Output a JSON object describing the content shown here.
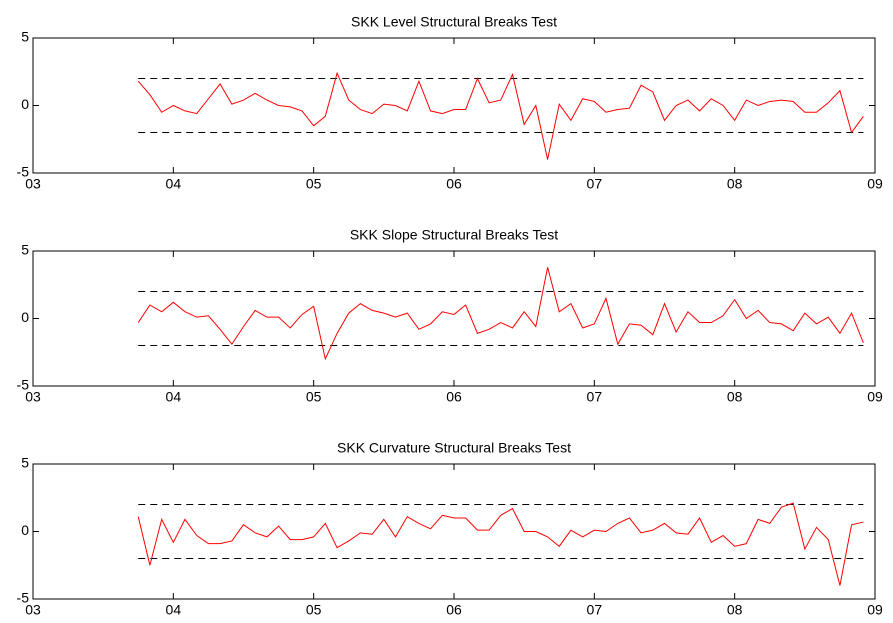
{
  "chart_data": [
    {
      "type": "line",
      "title": "SKK Level Structural Breaks Test",
      "x": [
        3.75,
        3.833,
        3.917,
        4,
        4.083,
        4.167,
        4.25,
        4.333,
        4.417,
        4.5,
        4.583,
        4.667,
        4.75,
        4.833,
        4.917,
        5,
        5.083,
        5.167,
        5.25,
        5.333,
        5.417,
        5.5,
        5.583,
        5.667,
        5.75,
        5.833,
        5.917,
        6,
        6.083,
        6.167,
        6.25,
        6.333,
        6.417,
        6.5,
        6.583,
        6.667,
        6.75,
        6.833,
        6.917,
        7,
        7.083,
        7.167,
        7.25,
        7.333,
        7.417,
        7.5,
        7.583,
        7.667,
        7.75,
        7.833,
        7.917,
        8,
        8.083,
        8.167,
        8.25,
        8.333,
        8.417,
        8.5,
        8.583,
        8.667,
        8.75,
        8.833,
        8.917
      ],
      "values": [
        1.8,
        0.8,
        -0.5,
        0,
        -0.4,
        -0.6,
        0.5,
        1.6,
        0.1,
        0.4,
        0.9,
        0.4,
        0,
        -0.1,
        -0.4,
        -1.5,
        -0.8,
        2.4,
        0.4,
        -0.3,
        -0.6,
        0.1,
        0,
        -0.4,
        1.8,
        -0.4,
        -0.6,
        -0.3,
        -0.3,
        2.0,
        0.2,
        0.4,
        2.3,
        -1.4,
        0,
        -4.0,
        0.1,
        -1.1,
        0.5,
        0.3,
        -0.5,
        -0.3,
        -0.2,
        1.5,
        1.0,
        -1.1,
        0,
        0.4,
        -0.4,
        0.5,
        0,
        -1.1,
        0.4,
        0,
        0.3,
        0.4,
        0.3,
        -0.5,
        -0.5,
        0.2,
        1.1,
        -2.0,
        -0.8
      ],
      "color": "#ff0000",
      "reference_lines": [
        2,
        -2
      ],
      "xlim": [
        3,
        9
      ],
      "xticks": [
        {
          "value": 3,
          "label": "03"
        },
        {
          "value": 4,
          "label": "04"
        },
        {
          "value": 5,
          "label": "05"
        },
        {
          "value": 6,
          "label": "06"
        },
        {
          "value": 7,
          "label": "07"
        },
        {
          "value": 8,
          "label": "08"
        },
        {
          "value": 9,
          "label": "09"
        }
      ],
      "ylim": [
        -5,
        5
      ],
      "yticks": [
        -5,
        0,
        5
      ]
    },
    {
      "type": "line",
      "title": "SKK Slope Structural Breaks Test",
      "x": [
        3.75,
        3.833,
        3.917,
        4,
        4.083,
        4.167,
        4.25,
        4.333,
        4.417,
        4.5,
        4.583,
        4.667,
        4.75,
        4.833,
        4.917,
        5,
        5.083,
        5.167,
        5.25,
        5.333,
        5.417,
        5.5,
        5.583,
        5.667,
        5.75,
        5.833,
        5.917,
        6,
        6.083,
        6.167,
        6.25,
        6.333,
        6.417,
        6.5,
        6.583,
        6.667,
        6.75,
        6.833,
        6.917,
        7,
        7.083,
        7.167,
        7.25,
        7.333,
        7.417,
        7.5,
        7.583,
        7.667,
        7.75,
        7.833,
        7.917,
        8,
        8.083,
        8.167,
        8.25,
        8.333,
        8.417,
        8.5,
        8.583,
        8.667,
        8.75,
        8.833,
        8.917
      ],
      "values": [
        -0.3,
        1.0,
        0.5,
        1.2,
        0.5,
        0.1,
        0.2,
        -0.8,
        -1.9,
        -0.6,
        0.6,
        0.1,
        0.1,
        -0.7,
        0.3,
        0.9,
        -3.0,
        -1.1,
        0.4,
        1.1,
        0.6,
        0.4,
        0.1,
        0.4,
        -0.8,
        -0.4,
        0.5,
        0.3,
        1.0,
        -1.1,
        -0.8,
        -0.3,
        -0.7,
        0.5,
        -0.6,
        3.8,
        0.5,
        1.1,
        -0.7,
        -0.4,
        1.5,
        -1.9,
        -0.4,
        -0.5,
        -1.2,
        1.1,
        -1.0,
        0.5,
        -0.3,
        -0.3,
        0.2,
        1.4,
        0,
        0.6,
        -0.3,
        -0.4,
        -0.9,
        0.4,
        -0.4,
        0.1,
        -1.1,
        0.4,
        -1.8
      ],
      "color": "#ff0000",
      "reference_lines": [
        2,
        -2
      ],
      "xlim": [
        3,
        9
      ],
      "xticks": [
        {
          "value": 3,
          "label": "03"
        },
        {
          "value": 4,
          "label": "04"
        },
        {
          "value": 5,
          "label": "05"
        },
        {
          "value": 6,
          "label": "06"
        },
        {
          "value": 7,
          "label": "07"
        },
        {
          "value": 8,
          "label": "08"
        },
        {
          "value": 9,
          "label": "09"
        }
      ],
      "ylim": [
        -5,
        5
      ],
      "yticks": [
        -5,
        0,
        5
      ]
    },
    {
      "type": "line",
      "title": "SKK Curvature Structural Breaks Test",
      "x": [
        3.75,
        3.833,
        3.917,
        4,
        4.083,
        4.167,
        4.25,
        4.333,
        4.417,
        4.5,
        4.583,
        4.667,
        4.75,
        4.833,
        4.917,
        5,
        5.083,
        5.167,
        5.25,
        5.333,
        5.417,
        5.5,
        5.583,
        5.667,
        5.75,
        5.833,
        5.917,
        6,
        6.083,
        6.167,
        6.25,
        6.333,
        6.417,
        6.5,
        6.583,
        6.667,
        6.75,
        6.833,
        6.917,
        7,
        7.083,
        7.167,
        7.25,
        7.333,
        7.417,
        7.5,
        7.583,
        7.667,
        7.75,
        7.833,
        7.917,
        8,
        8.083,
        8.167,
        8.25,
        8.333,
        8.417,
        8.5,
        8.583,
        8.667,
        8.75,
        8.833,
        8.917
      ],
      "values": [
        1.1,
        -2.5,
        0.9,
        -0.8,
        0.9,
        -0.3,
        -0.9,
        -0.9,
        -0.7,
        0.5,
        -0.1,
        -0.4,
        0.4,
        -0.6,
        -0.6,
        -0.4,
        0.6,
        -1.2,
        -0.7,
        -0.1,
        -0.2,
        0.9,
        -0.4,
        1.1,
        0.6,
        0.2,
        1.2,
        1.0,
        1.0,
        0.1,
        0.1,
        1.2,
        1.7,
        0,
        0,
        -0.4,
        -1.1,
        0.1,
        -0.4,
        0.1,
        0,
        0.6,
        1.0,
        -0.1,
        0.1,
        0.6,
        -0.1,
        -0.2,
        1.0,
        -0.8,
        -0.3,
        -1.1,
        -0.9,
        0.9,
        0.6,
        1.8,
        2.1,
        -1.3,
        0.3,
        -0.6,
        -4.0,
        0.5,
        0.7
      ],
      "color": "#ff0000",
      "reference_lines": [
        2,
        -2
      ],
      "xlim": [
        3,
        9
      ],
      "xticks": [
        {
          "value": 3,
          "label": "03"
        },
        {
          "value": 4,
          "label": "04"
        },
        {
          "value": 5,
          "label": "05"
        },
        {
          "value": 6,
          "label": "06"
        },
        {
          "value": 7,
          "label": "07"
        },
        {
          "value": 8,
          "label": "08"
        },
        {
          "value": 9,
          "label": "09"
        }
      ],
      "ylim": [
        -5,
        5
      ],
      "yticks": [
        -5,
        0,
        5
      ]
    }
  ]
}
